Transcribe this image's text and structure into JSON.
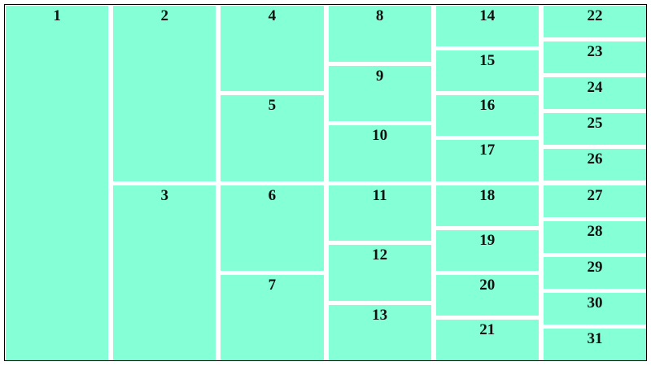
{
  "fill_color": "#84ffd6",
  "columns": [
    [
      [
        "1"
      ]
    ],
    [
      [
        "2"
      ],
      [
        "3"
      ]
    ],
    [
      [
        "4",
        "5"
      ],
      [
        "6",
        "7"
      ]
    ],
    [
      [
        "8",
        "9",
        "10"
      ],
      [
        "11",
        "12",
        "13"
      ]
    ],
    [
      [
        "14",
        "15",
        "16",
        "17"
      ],
      [
        "18",
        "19",
        "20",
        "21"
      ]
    ],
    [
      [
        "22",
        "23",
        "24",
        "25",
        "26"
      ],
      [
        "27",
        "28",
        "29",
        "30",
        "31"
      ]
    ]
  ]
}
